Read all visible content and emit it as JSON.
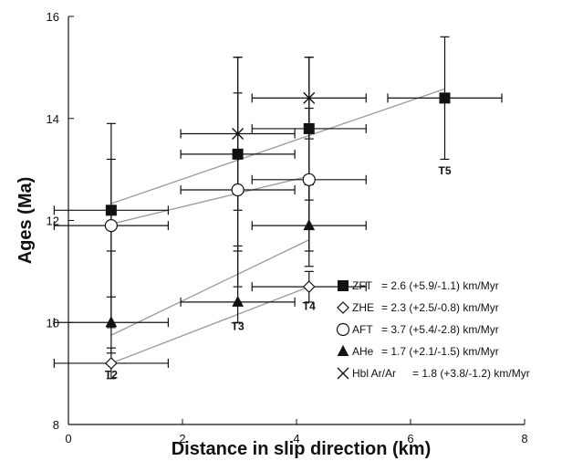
{
  "chart_data": {
    "type": "scatter",
    "title": "",
    "xlabel": "Distance in slip direction (km)",
    "ylabel": "Ages (Ma)",
    "xlim": [
      0,
      8
    ],
    "ylim": [
      8,
      16
    ],
    "x_ticks": [
      "0",
      "2",
      "4",
      "6",
      "8"
    ],
    "y_ticks": [
      "8",
      "10",
      "12",
      "14",
      "16"
    ],
    "grid": false,
    "legend_position": "bottom-right",
    "site_labels": [
      {
        "label": "T2",
        "x": 0.75,
        "y": 8.9
      },
      {
        "label": "T3",
        "x": 2.97,
        "y": 9.85
      },
      {
        "label": "T4",
        "x": 4.22,
        "y": 10.25
      },
      {
        "label": "T5",
        "x": 6.6,
        "y": 12.9
      }
    ],
    "series": [
      {
        "name": "ZFT",
        "legend_rate": "= 2.6 (+5.9/-1.1) km/Myr",
        "marker": "filled-square",
        "points": [
          {
            "x": 0.75,
            "y": 12.2,
            "xerr": 1.0,
            "yerr_plus": 1.7,
            "yerr_minus": 1.7
          },
          {
            "x": 2.97,
            "y": 13.3,
            "xerr": 1.0,
            "yerr_plus": 1.9,
            "yerr_minus": 1.9
          },
          {
            "x": 4.22,
            "y": 13.8,
            "xerr": 1.0,
            "yerr_plus": 1.4,
            "yerr_minus": 1.4
          },
          {
            "x": 6.6,
            "y": 14.4,
            "xerr": 1.0,
            "yerr_plus": 1.2,
            "yerr_minus": 1.2
          }
        ],
        "trend": {
          "x1": 0.75,
          "y1": 12.33,
          "x2": 6.6,
          "y2": 14.58
        }
      },
      {
        "name": "ZHE",
        "legend_rate": "= 2.3 (+2.5/-0.8) km/Myr",
        "marker": "open-diamond",
        "points": [
          {
            "x": 0.75,
            "y": 9.2,
            "xerr": 1.0,
            "yerr_plus": 0.3,
            "yerr_minus": 0.3
          },
          {
            "x": 4.22,
            "y": 10.7,
            "xerr": 1.0,
            "yerr_plus": 0.3,
            "yerr_minus": 0.3
          }
        ],
        "trend": {
          "x1": 0.75,
          "y1": 9.2,
          "x2": 4.22,
          "y2": 10.7
        }
      },
      {
        "name": "AFT",
        "legend_rate": "= 3.7 (+5.4/-2.8) km/Myr",
        "marker": "open-circle",
        "points": [
          {
            "x": 0.75,
            "y": 11.9,
            "xerr": 1.0,
            "yerr_plus": 1.3,
            "yerr_minus": 2.0
          },
          {
            "x": 2.97,
            "y": 12.6,
            "xerr": 1.0,
            "yerr_plus": 1.9,
            "yerr_minus": 1.9
          },
          {
            "x": 4.22,
            "y": 12.8,
            "xerr": 1.0,
            "yerr_plus": 1.4,
            "yerr_minus": 1.4
          }
        ],
        "trend": {
          "x1": 0.75,
          "y1": 11.93,
          "x2": 4.22,
          "y2": 12.87
        }
      },
      {
        "name": "AHe",
        "legend_rate": "= 1.7 (+2.1/-1.5) km/Myr",
        "marker": "filled-triangle",
        "points": [
          {
            "x": 0.75,
            "y": 10.0,
            "xerr": 1.0,
            "yerr_plus": 1.4,
            "yerr_minus": 0.6
          },
          {
            "x": 2.97,
            "y": 10.4,
            "xerr": 1.0,
            "yerr_plus": 1.1,
            "yerr_minus": 0.4
          },
          {
            "x": 4.22,
            "y": 11.9,
            "xerr": 1.0,
            "yerr_plus": 0.8,
            "yerr_minus": 0.8
          }
        ],
        "trend": {
          "x1": 0.75,
          "y1": 9.75,
          "x2": 4.22,
          "y2": 11.62
        }
      },
      {
        "name": "Hbl Ar/Ar",
        "legend_rate": "= 1.8 (+3.8/-1.2) km/Myr",
        "marker": "x-cross",
        "points": [
          {
            "x": 2.97,
            "y": 13.7,
            "xerr": 1.0,
            "yerr_plus": 1.5,
            "yerr_minus": 1.5
          },
          {
            "x": 4.22,
            "y": 14.4,
            "xerr": 1.0,
            "yerr_plus": 0.8,
            "yerr_minus": 0.8
          }
        ]
      }
    ]
  }
}
